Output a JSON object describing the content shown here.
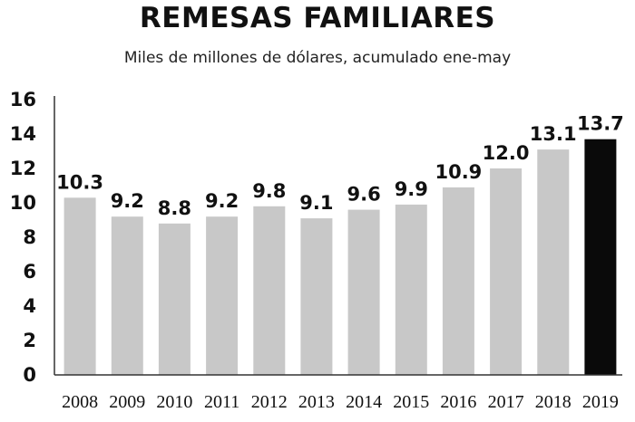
{
  "chart_data": {
    "type": "bar",
    "title": "REMESAS FAMILIARES",
    "subtitle": "Miles de millones de dólares, acumulado ene-may",
    "xlabel": "",
    "ylabel": "",
    "ylim": [
      0,
      16
    ],
    "yticks": [
      "0",
      "2",
      "4",
      "6",
      "8",
      "10",
      "12",
      "14",
      "16"
    ],
    "categories": [
      "2008",
      "2009",
      "2010",
      "2011",
      "2012",
      "2013",
      "2014",
      "2015",
      "2016",
      "2017",
      "2018",
      "2019"
    ],
    "values": [
      10.3,
      9.2,
      8.8,
      9.2,
      9.8,
      9.1,
      9.6,
      9.9,
      10.9,
      12.0,
      13.1,
      13.7
    ],
    "value_labels": [
      "10.3",
      "9.2",
      "8.8",
      "9.2",
      "9.8",
      "9.1",
      "9.6",
      "9.9",
      "10.9",
      "12.0",
      "13.1",
      "13.7"
    ],
    "grid": false,
    "legend": "none",
    "colors": {
      "bar": "#c8c8c8",
      "highlight_bar": "#0a0a0a",
      "axis": "#333333",
      "text": "#111111"
    },
    "highlight_index": 11
  }
}
